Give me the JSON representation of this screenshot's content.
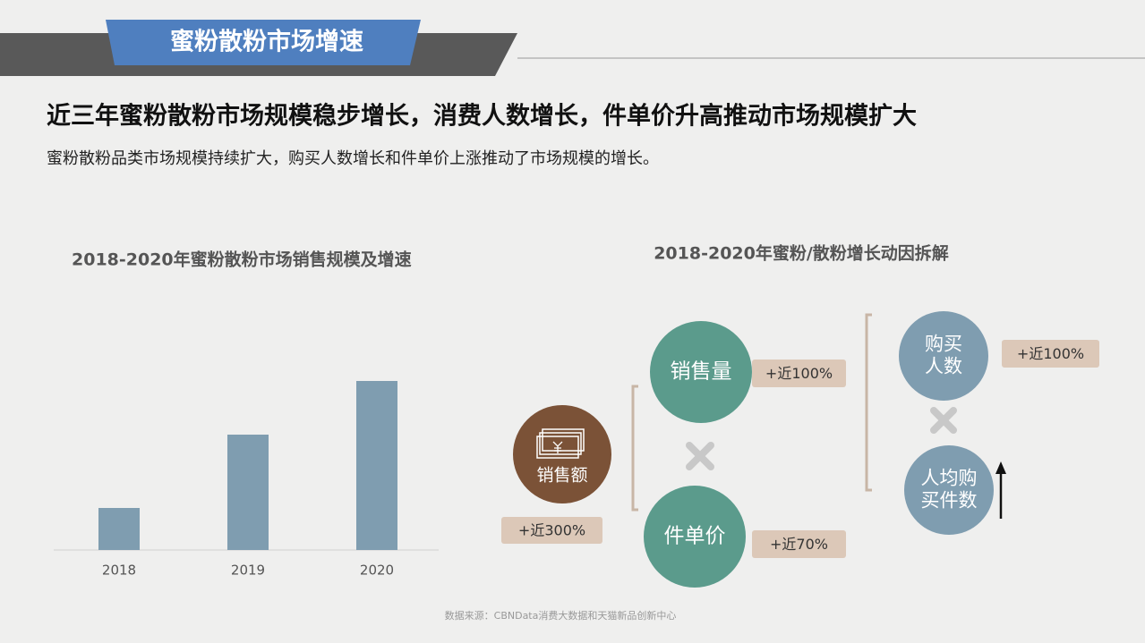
{
  "header": {
    "banner": "蜜粉散粉市场增速",
    "title": "近三年蜜粉散粉市场规模稳步增长，消费人数增长，件单价升高推动市场规模扩大",
    "subtitle": "蜜粉散粉品类市场规模持续扩大，购买人数增长和件单价上涨推动了市场规模的增长。"
  },
  "chart_data": {
    "type": "bar",
    "title": "2018-2020年蜜粉散粉市场销售规模及增速",
    "categories": [
      "2018",
      "2019",
      "2020"
    ],
    "values": [
      47,
      129,
      189
    ],
    "color": "#7f9db0",
    "ylim": [
      0,
      200
    ]
  },
  "diagram": {
    "title": "2018-2020年蜜粉/散粉增长动因拆解",
    "nodes": [
      {
        "label": [
          "销售额"
        ],
        "change": "+近300%"
      },
      {
        "label": [
          "销售量"
        ],
        "change": "+近100%"
      },
      {
        "label": [
          "件单价"
        ],
        "change": "+近70%"
      },
      {
        "label": [
          "购买",
          "人数"
        ],
        "change": "+近100%"
      },
      {
        "label": [
          "人均购",
          "买件数"
        ]
      }
    ]
  },
  "source": "数据来源：CBNData消费大数据和天猫新品创新中心"
}
